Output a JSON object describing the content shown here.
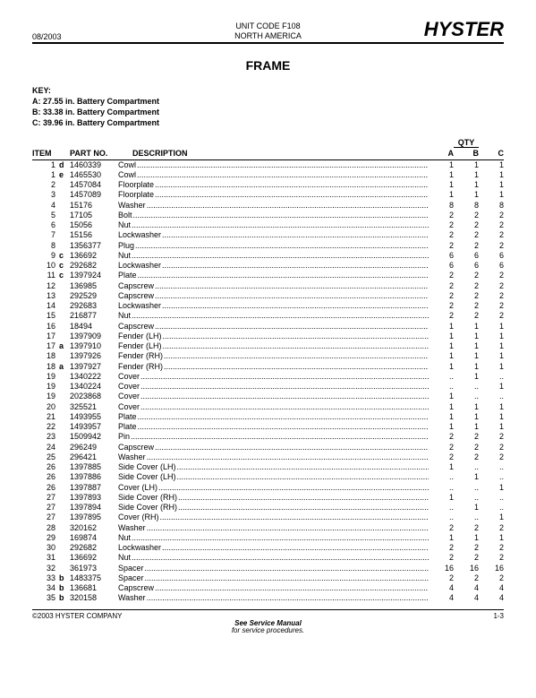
{
  "header": {
    "date": "08/2003",
    "unit_code": "UNIT CODE F108",
    "region": "NORTH AMERICA",
    "brand": "HYSTER"
  },
  "title": "FRAME",
  "key": {
    "label": "KEY:",
    "lines": [
      "A:  27.55 in.  Battery Compartment",
      "B:  33.38 in.  Battery Compartment",
      "C:  39.96 in.  Battery Compartment"
    ]
  },
  "columns": {
    "item": "ITEM",
    "partno": "PART NO.",
    "description": "DESCRIPTION",
    "qty": "QTY",
    "a": "A",
    "b": "B",
    "c": "C"
  },
  "rows": [
    {
      "item": "1",
      "tag": "d",
      "part": "1460339",
      "desc": "Cowl",
      "a": "1",
      "b": "1",
      "c": "1"
    },
    {
      "item": "1",
      "tag": "e",
      "part": "1465530",
      "desc": "Cowl",
      "a": "1",
      "b": "1",
      "c": "1"
    },
    {
      "item": "2",
      "tag": "",
      "part": "1457084",
      "desc": "Floorplate",
      "a": "1",
      "b": "1",
      "c": "1"
    },
    {
      "item": "3",
      "tag": "",
      "part": "1457089",
      "desc": "Floorplate",
      "a": "1",
      "b": "1",
      "c": "1"
    },
    {
      "item": "4",
      "tag": "",
      "part": "15176",
      "desc": "Washer",
      "a": "8",
      "b": "8",
      "c": "8"
    },
    {
      "item": "5",
      "tag": "",
      "part": "17105",
      "desc": "Bolt",
      "a": "2",
      "b": "2",
      "c": "2"
    },
    {
      "item": "6",
      "tag": "",
      "part": "15056",
      "desc": "Nut",
      "a": "2",
      "b": "2",
      "c": "2"
    },
    {
      "item": "7",
      "tag": "",
      "part": "15156",
      "desc": "Lockwasher",
      "a": "2",
      "b": "2",
      "c": "2"
    },
    {
      "item": "8",
      "tag": "",
      "part": "1356377",
      "desc": "Plug",
      "a": "2",
      "b": "2",
      "c": "2"
    },
    {
      "item": "9",
      "tag": "c",
      "part": "136692",
      "desc": "Nut",
      "a": "6",
      "b": "6",
      "c": "6"
    },
    {
      "item": "10",
      "tag": "c",
      "part": "292682",
      "desc": "Lockwasher",
      "a": "6",
      "b": "6",
      "c": "6"
    },
    {
      "item": "11",
      "tag": "c",
      "part": "1397924",
      "desc": "Plate",
      "a": "2",
      "b": "2",
      "c": "2"
    },
    {
      "item": "12",
      "tag": "",
      "part": "136985",
      "desc": "Capscrew",
      "a": "2",
      "b": "2",
      "c": "2"
    },
    {
      "item": "13",
      "tag": "",
      "part": "292529",
      "desc": "Capscrew",
      "a": "2",
      "b": "2",
      "c": "2"
    },
    {
      "item": "14",
      "tag": "",
      "part": "292683",
      "desc": "Lockwasher",
      "a": "2",
      "b": "2",
      "c": "2"
    },
    {
      "item": "15",
      "tag": "",
      "part": "216877",
      "desc": "Nut",
      "a": "2",
      "b": "2",
      "c": "2"
    },
    {
      "item": "16",
      "tag": "",
      "part": "18494",
      "desc": "Capscrew",
      "a": "1",
      "b": "1",
      "c": "1"
    },
    {
      "item": "17",
      "tag": "",
      "part": "1397909",
      "desc": "Fender (LH)",
      "a": "1",
      "b": "1",
      "c": "1"
    },
    {
      "item": "17",
      "tag": "a",
      "part": "1397910",
      "desc": "Fender (LH)",
      "a": "1",
      "b": "1",
      "c": "1"
    },
    {
      "item": "18",
      "tag": "",
      "part": "1397926",
      "desc": "Fender (RH)",
      "a": "1",
      "b": "1",
      "c": "1"
    },
    {
      "item": "18",
      "tag": "a",
      "part": "1397927",
      "desc": "Fender (RH)",
      "a": "1",
      "b": "1",
      "c": "1"
    },
    {
      "item": "19",
      "tag": "",
      "part": "1340222",
      "desc": "Cover",
      "a": "..",
      "b": "1",
      "c": ".."
    },
    {
      "item": "19",
      "tag": "",
      "part": "1340224",
      "desc": "Cover",
      "a": "..",
      "b": "..",
      "c": "1"
    },
    {
      "item": "19",
      "tag": "",
      "part": "2023868",
      "desc": "Cover",
      "a": "1",
      "b": "..",
      "c": ".."
    },
    {
      "item": "20",
      "tag": "",
      "part": "325521",
      "desc": "Cover",
      "a": "1",
      "b": "1",
      "c": "1"
    },
    {
      "item": "21",
      "tag": "",
      "part": "1493955",
      "desc": "Plate",
      "a": "1",
      "b": "1",
      "c": "1"
    },
    {
      "item": "22",
      "tag": "",
      "part": "1493957",
      "desc": "Plate",
      "a": "1",
      "b": "1",
      "c": "1"
    },
    {
      "item": "23",
      "tag": "",
      "part": "1509942",
      "desc": "Pin",
      "a": "2",
      "b": "2",
      "c": "2"
    },
    {
      "item": "24",
      "tag": "",
      "part": "296249",
      "desc": "Capscrew",
      "a": "2",
      "b": "2",
      "c": "2"
    },
    {
      "item": "25",
      "tag": "",
      "part": "296421",
      "desc": "Washer",
      "a": "2",
      "b": "2",
      "c": "2"
    },
    {
      "item": "26",
      "tag": "",
      "part": "1397885",
      "desc": "Side Cover (LH)",
      "a": "1",
      "b": "..",
      "c": ".."
    },
    {
      "item": "26",
      "tag": "",
      "part": "1397886",
      "desc": "Side Cover (LH)",
      "a": "..",
      "b": "1",
      "c": ".."
    },
    {
      "item": "26",
      "tag": "",
      "part": "1397887",
      "desc": "Cover (LH)",
      "a": "..",
      "b": "..",
      "c": "1"
    },
    {
      "item": "27",
      "tag": "",
      "part": "1397893",
      "desc": "Side Cover (RH)",
      "a": "1",
      "b": "..",
      "c": ".."
    },
    {
      "item": "27",
      "tag": "",
      "part": "1397894",
      "desc": "Side Cover (RH)",
      "a": "..",
      "b": "1",
      "c": ".."
    },
    {
      "item": "27",
      "tag": "",
      "part": "1397895",
      "desc": "Cover (RH)",
      "a": "..",
      "b": "..",
      "c": "1"
    },
    {
      "item": "28",
      "tag": "",
      "part": "320162",
      "desc": "Washer",
      "a": "2",
      "b": "2",
      "c": "2"
    },
    {
      "item": "29",
      "tag": "",
      "part": "169874",
      "desc": "Nut",
      "a": "1",
      "b": "1",
      "c": "1"
    },
    {
      "item": "30",
      "tag": "",
      "part": "292682",
      "desc": "Lockwasher",
      "a": "2",
      "b": "2",
      "c": "2"
    },
    {
      "item": "31",
      "tag": "",
      "part": "136692",
      "desc": "Nut",
      "a": "2",
      "b": "2",
      "c": "2"
    },
    {
      "item": "32",
      "tag": "",
      "part": "361973",
      "desc": "Spacer",
      "a": "16",
      "b": "16",
      "c": "16"
    },
    {
      "item": "33",
      "tag": "b",
      "part": "1483375",
      "desc": "Spacer",
      "a": "2",
      "b": "2",
      "c": "2"
    },
    {
      "item": "34",
      "tag": "b",
      "part": "136681",
      "desc": "Capscrew",
      "a": "4",
      "b": "4",
      "c": "4"
    },
    {
      "item": "35",
      "tag": "b",
      "part": "320158",
      "desc": "Washer",
      "a": "4",
      "b": "4",
      "c": "4"
    }
  ],
  "footer": {
    "copyright": "©2003 HYSTER COMPANY",
    "center1": "See Service Manual",
    "center2": "for service procedures.",
    "page": "1-3"
  }
}
